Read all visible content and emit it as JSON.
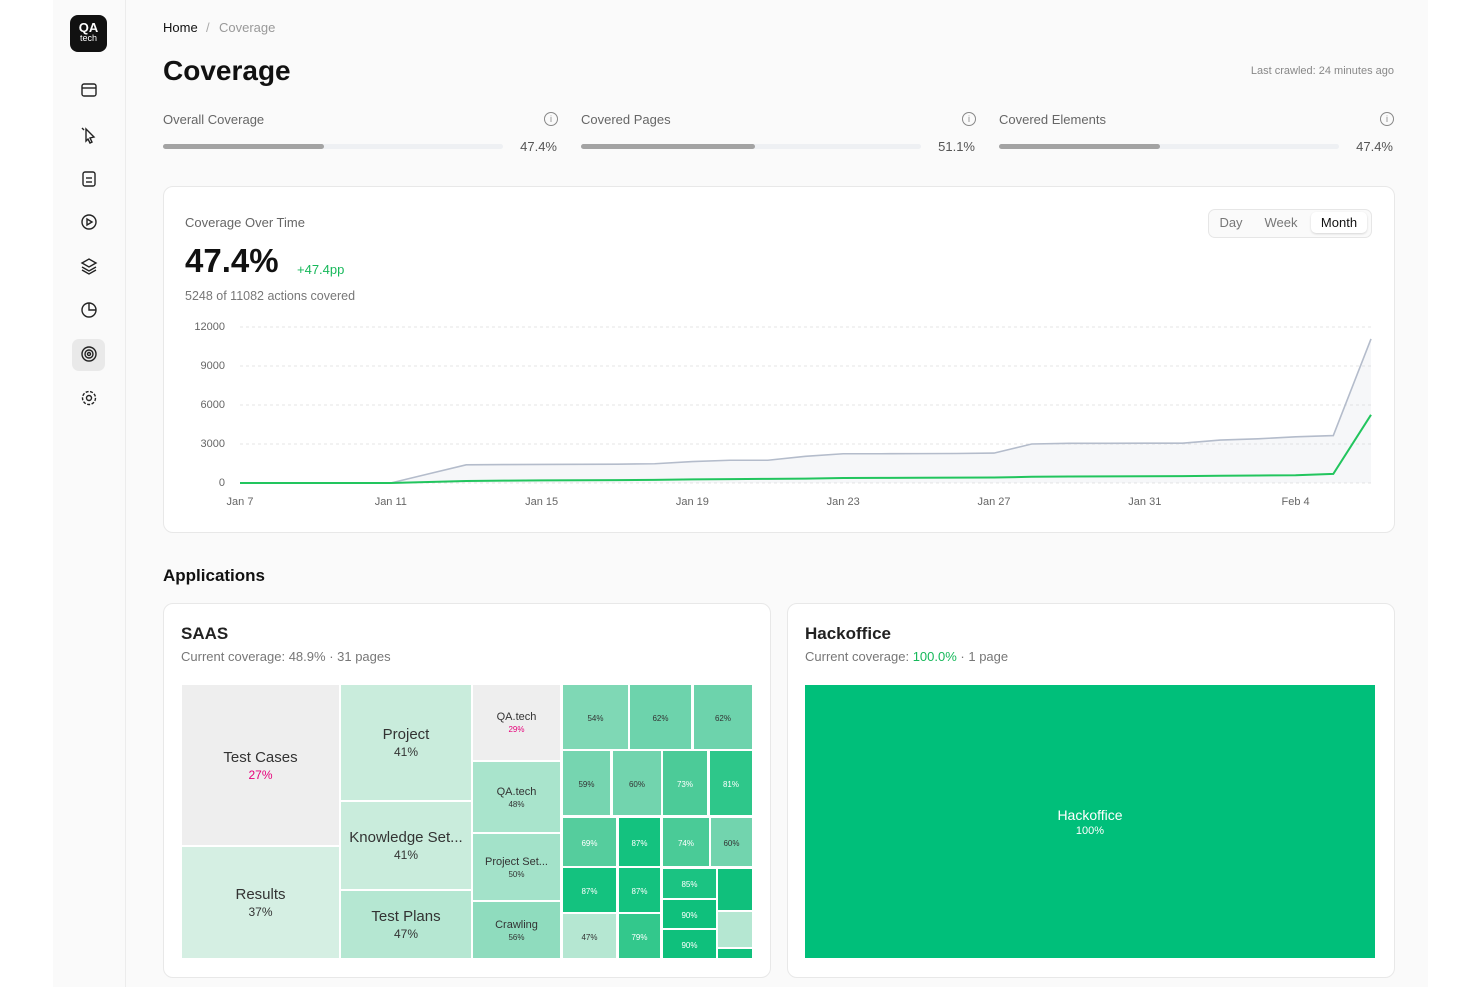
{
  "sidebar": {
    "logo": [
      "QA",
      "tech"
    ]
  },
  "breadcrumb": [
    "Home",
    "Coverage"
  ],
  "header": {
    "title": "Coverage",
    "last_crawled": "Last crawled: 24 minutes ago"
  },
  "metrics": [
    {
      "label": "Overall Coverage",
      "value": 47.4,
      "value_label": "47.4%"
    },
    {
      "label": "Covered Pages",
      "value": 51.1,
      "value_label": "51.1%"
    },
    {
      "label": "Covered Elements",
      "value": 47.4,
      "value_label": "47.4%"
    }
  ],
  "chart_data": {
    "type": "line",
    "title": "Coverage Over Time",
    "headline": "47.4%",
    "change": "+47.4pp",
    "subtitle": "5248 of 11082 actions covered",
    "ranges": [
      "Day",
      "Week",
      "Month"
    ],
    "selected_range": 2,
    "categories": [
      "Jan 7",
      null,
      null,
      null,
      "Jan 11",
      null,
      null,
      null,
      "Jan 15",
      null,
      null,
      null,
      "Jan 19",
      null,
      null,
      null,
      "Jan 23",
      null,
      null,
      null,
      "Jan 27",
      null,
      null,
      null,
      "Jan 31",
      null,
      null,
      null,
      "Feb 4",
      null,
      null
    ],
    "ylim": [
      0,
      12000
    ],
    "yticks": [
      0,
      3000,
      6000,
      9000,
      12000
    ],
    "grid": true,
    "series": [
      {
        "color": "#b4bccb",
        "fill": true,
        "values": [
          0,
          0,
          0,
          0,
          0,
          700,
          1400,
          1420,
          1430,
          1440,
          1450,
          1480,
          1650,
          1750,
          1750,
          2050,
          2250,
          2250,
          2260,
          2270,
          2300,
          3000,
          3050,
          3050,
          3060,
          3060,
          3300,
          3400,
          3550,
          3650,
          11082
        ]
      },
      {
        "color": "#22c55e",
        "fill": false,
        "values": [
          0,
          0,
          0,
          0,
          0,
          80,
          150,
          180,
          200,
          210,
          220,
          240,
          280,
          300,
          320,
          340,
          380,
          390,
          400,
          410,
          420,
          480,
          500,
          510,
          520,
          530,
          560,
          580,
          600,
          700,
          5248
        ]
      }
    ]
  },
  "applications": {
    "title": "Applications",
    "apps": [
      {
        "name": "SAAS",
        "coverage_label": "Current coverage:",
        "coverage": "48.9%",
        "coverage_color": "#777777",
        "pages": "· 31 pages",
        "cells": [
          {
            "name": "Test Cases",
            "coverage": "27%"
          },
          {
            "name": "Results",
            "coverage": "37%"
          },
          {
            "name": "Project",
            "coverage": "41%"
          },
          {
            "name": "Knowledge Set...",
            "coverage": "41%"
          },
          {
            "name": "Test Plans",
            "coverage": "47%"
          },
          {
            "name": "QA.tech",
            "coverage": "29%"
          },
          {
            "name": "QA.tech",
            "coverage": "48%"
          },
          {
            "name": "Project Set...",
            "coverage": "50%"
          },
          {
            "name": "Crawling",
            "coverage": "56%"
          },
          {
            "coverage": "54%"
          },
          {
            "coverage": "62%"
          },
          {
            "coverage": "62%"
          },
          {
            "coverage": "59%"
          },
          {
            "coverage": "60%"
          },
          {
            "coverage": "73%"
          },
          {
            "coverage": "81%"
          },
          {
            "coverage": "69%"
          },
          {
            "coverage": "87%"
          },
          {
            "coverage": "74%"
          },
          {
            "coverage": "60%"
          },
          {
            "coverage": "87%"
          },
          {
            "coverage": "87%"
          },
          {
            "coverage": "85%"
          },
          {
            "coverage": "90%"
          },
          {
            "coverage": "90%"
          },
          {
            "coverage": "47%"
          },
          {
            "coverage": "79%"
          }
        ]
      },
      {
        "name": "Hackoffice",
        "coverage_label": "Current coverage:",
        "coverage": "100.0%",
        "coverage_color": "#16b85a",
        "pages": "· 1 page",
        "cells": [
          {
            "name": "Hackoffice",
            "coverage": "100%"
          }
        ]
      }
    ]
  }
}
